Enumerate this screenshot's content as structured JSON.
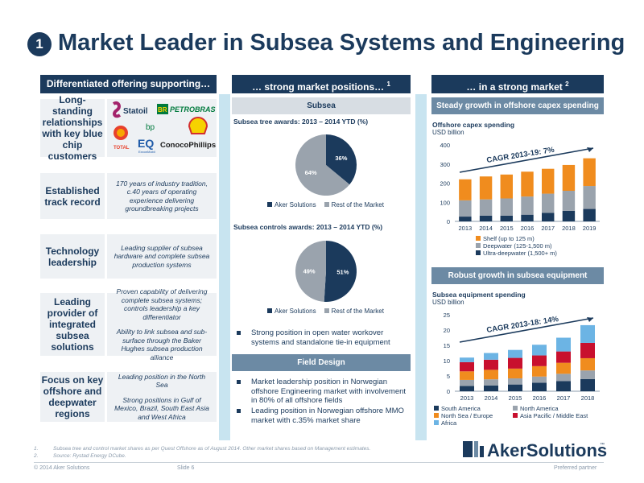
{
  "title_number": "1",
  "title": "Market Leader in Subsea Systems and Engineering",
  "columns": {
    "left": "Differentiated offering supporting…",
    "middle": "… strong market positions… ",
    "middle_sup": "1",
    "right": "… in a strong market ",
    "right_sup": "2"
  },
  "rows": [
    {
      "label": "Long-standing relationships with key blue chip customers",
      "text": []
    },
    {
      "label": "Established track record",
      "text": [
        "170 years of industry tradition, c.40 years of operating experience delivering groundbreaking projects"
      ]
    },
    {
      "label": "Technology leadership",
      "text": [
        "Leading supplier of subsea hardware and complete subsea production systems"
      ]
    },
    {
      "label": "Leading provider of integrated subsea solutions",
      "text": [
        "Proven capability of delivering complete subsea systems; controls leadership a key differentiator",
        "Ability to link subsea and sub-surface through the Baker Hughes subsea production alliance"
      ]
    },
    {
      "label": "Focus on key offshore and deepwater regions",
      "text": [
        "Leading position in the North Sea",
        "Strong positions in Gulf of Mexico, Brazil, South East Asia and West Africa"
      ]
    }
  ],
  "customer_logos": {
    "statoil": "Statoil",
    "br": "BR",
    "petrobras": "PETROBRAS",
    "total": "TOTAL",
    "bp": "bp",
    "eq": "EQ",
    "eq_sub": "ExxonMobil",
    "conoco": "ConocoPhillips"
  },
  "subsea": {
    "header": "Subsea",
    "tree_title": "Subsea tree awards: 2013 – 2014 YTD (%)",
    "controls_title": "Subsea controls awards: 2013 – 2014 YTD (%)",
    "legend_aker": "Aker Solutions",
    "legend_rest": "Rest of the Market",
    "bullet": "Strong position in open water workover systems and standalone tie-in equipment"
  },
  "field_design": {
    "header": "Field Design",
    "bullets": [
      "Market leadership position in Norwegian offshore Engineering market with involvement in 80% of all offshore fields",
      "Leading position in Norwegian offshore MMO market with c.35% market share"
    ]
  },
  "right": {
    "capex_header": "Steady growth in offshore capex spending",
    "capex_title": "Offshore capex spending",
    "capex_unit": "USD billion",
    "capex_cagr": "CAGR 2013-19: 7%",
    "equip_header": "Robust growth in subsea equipment spending",
    "equip_title": "Subsea equipment spending",
    "equip_unit": "USD billion",
    "equip_cagr": "CAGR 2013-18: 14%"
  },
  "chart_data": [
    {
      "type": "pie",
      "title": "Subsea tree awards: 2013 – 2014 YTD (%)",
      "labels": [
        "Aker Solutions",
        "Rest of the Market"
      ],
      "values": [
        36,
        64
      ],
      "colors": [
        "#1b3a5c",
        "#9aa3ad"
      ]
    },
    {
      "type": "pie",
      "title": "Subsea controls awards: 2013 – 2014 YTD (%)",
      "labels": [
        "Aker Solutions",
        "Rest of the Market"
      ],
      "values": [
        51,
        49
      ],
      "colors": [
        "#1b3a5c",
        "#9aa3ad"
      ]
    },
    {
      "type": "bar",
      "stacked": true,
      "title": "Offshore capex spending",
      "ylabel": "USD billion",
      "categories": [
        "2013",
        "2014",
        "2015",
        "2016",
        "2017",
        "2018",
        "2019"
      ],
      "ylim": [
        0,
        400
      ],
      "yticks": [
        0,
        100,
        200,
        300,
        400
      ],
      "series": [
        {
          "name": "Ultra-deepwater (1,500+ m)",
          "color": "#1b3a5c",
          "values": [
            25,
            30,
            30,
            35,
            45,
            55,
            65
          ]
        },
        {
          "name": "Deepwater (125-1,500 m)",
          "color": "#9aa3ad",
          "values": [
            85,
            85,
            90,
            95,
            100,
            105,
            120
          ]
        },
        {
          "name": "Shelf (up to 125 m)",
          "color": "#f08c1e",
          "values": [
            110,
            120,
            125,
            130,
            130,
            135,
            145
          ]
        }
      ],
      "legend_order": [
        "Shelf (up to 125 m)",
        "Deepwater (125-1,500 m)",
        "Ultra-deepwater (1,500+ m)"
      ]
    },
    {
      "type": "bar",
      "stacked": true,
      "title": "Subsea equipment spending",
      "ylabel": "USD billion",
      "categories": [
        "2013",
        "2014",
        "2015",
        "2016",
        "2017",
        "2018"
      ],
      "ylim": [
        0,
        25
      ],
      "yticks": [
        0,
        5,
        10,
        15,
        20,
        25
      ],
      "series": [
        {
          "name": "South America",
          "color": "#1b3a5c",
          "values": [
            1.7,
            1.9,
            2.2,
            2.8,
            3.3,
            4.0
          ]
        },
        {
          "name": "North America",
          "color": "#9aa3ad",
          "values": [
            2.0,
            2.0,
            2.0,
            2.0,
            2.4,
            2.8
          ]
        },
        {
          "name": "North Sea / Europe",
          "color": "#f08c1e",
          "values": [
            2.8,
            3.1,
            3.2,
            3.4,
            3.6,
            4.0
          ]
        },
        {
          "name": "Asia Pacific / Middle East",
          "color": "#c8102e",
          "values": [
            3.0,
            3.3,
            3.5,
            3.5,
            3.7,
            5.0
          ]
        },
        {
          "name": "Africa",
          "color": "#6cb4e4",
          "values": [
            1.5,
            2.2,
            2.6,
            3.5,
            4.5,
            5.8
          ]
        }
      ]
    }
  ],
  "footnotes": [
    {
      "num": "1.",
      "text": "Subsea tree and control market shares as per Quest Offshore as of August 2014. Other market shares based on Management estimates."
    },
    {
      "num": "2.",
      "text": "Source: Rystad Energy DCube."
    }
  ],
  "footer": {
    "copyright": "© 2014 Aker Solutions",
    "slide": "Slide 6",
    "right": "Preferred partner"
  },
  "brand": "AkerSolutions",
  "brand_tm": "™"
}
